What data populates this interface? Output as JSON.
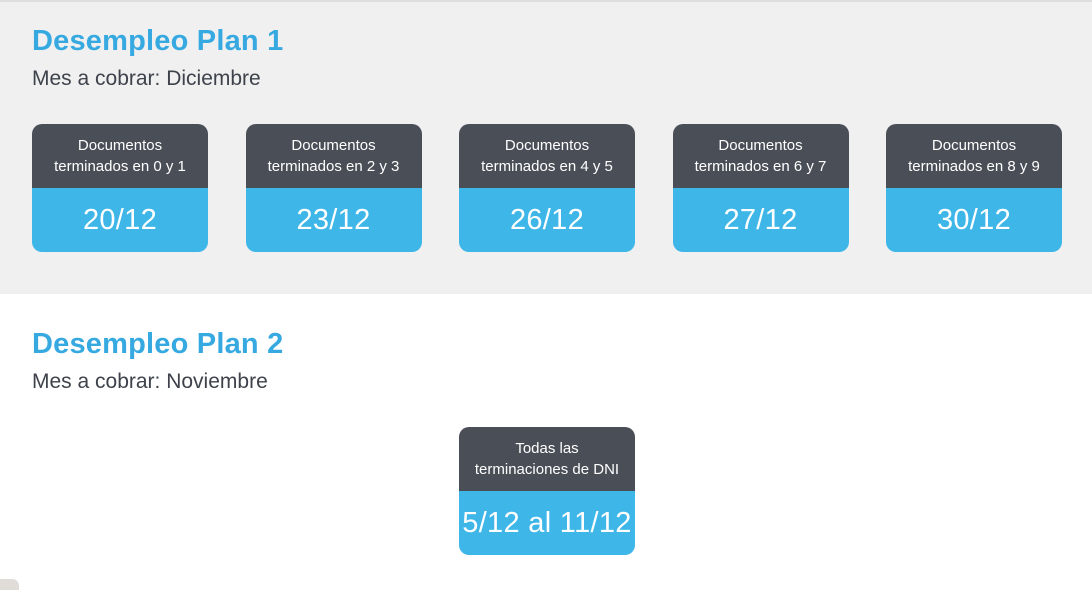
{
  "colors": {
    "accent_blue": "#36a9e1",
    "card_blue": "#3fb6e8",
    "card_dark": "#4a4e57",
    "text_dark": "#3e434b",
    "bg_gray": "#f0f0f1",
    "bg_white": "#ffffff"
  },
  "sections": [
    {
      "title": "Desempleo Plan 1",
      "subtitle": "Mes a cobrar: Diciembre",
      "cards": [
        {
          "label_line1": "Documentos",
          "label_line2": "terminados en 0 y 1",
          "date": "20/12"
        },
        {
          "label_line1": "Documentos",
          "label_line2": "terminados en 2 y 3",
          "date": "23/12"
        },
        {
          "label_line1": "Documentos",
          "label_line2": "terminados en 4 y 5",
          "date": "26/12"
        },
        {
          "label_line1": "Documentos",
          "label_line2": "terminados en 6 y 7",
          "date": "27/12"
        },
        {
          "label_line1": "Documentos",
          "label_line2": "terminados en 8 y 9",
          "date": "30/12"
        }
      ]
    },
    {
      "title": "Desempleo Plan 2",
      "subtitle": "Mes a cobrar: Noviembre",
      "cards": [
        {
          "label_line1": "Todas las",
          "label_line2": "terminaciones de DNI",
          "date": "5/12 al 11/12"
        }
      ]
    }
  ]
}
